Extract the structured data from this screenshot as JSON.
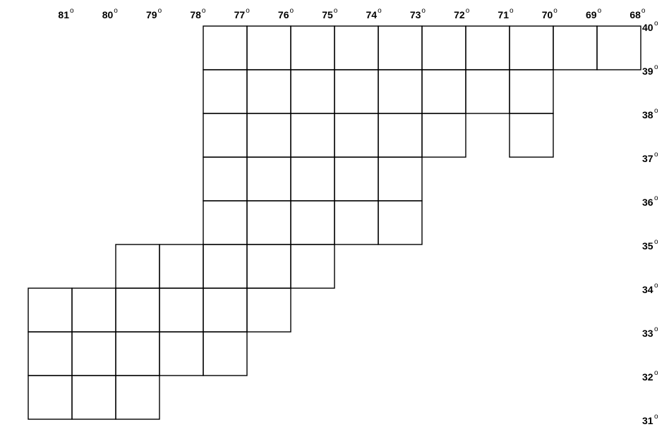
{
  "longitude_labels": [
    "81",
    "80",
    "79",
    "78",
    "77",
    "76",
    "75",
    "74",
    "73",
    "72",
    "71",
    "70",
    "69",
    "68"
  ],
  "latitude_labels": [
    "40",
    "39",
    "38",
    "37",
    "36",
    "35",
    "34",
    "33",
    "32",
    "31"
  ],
  "degree_mark": "o"
}
